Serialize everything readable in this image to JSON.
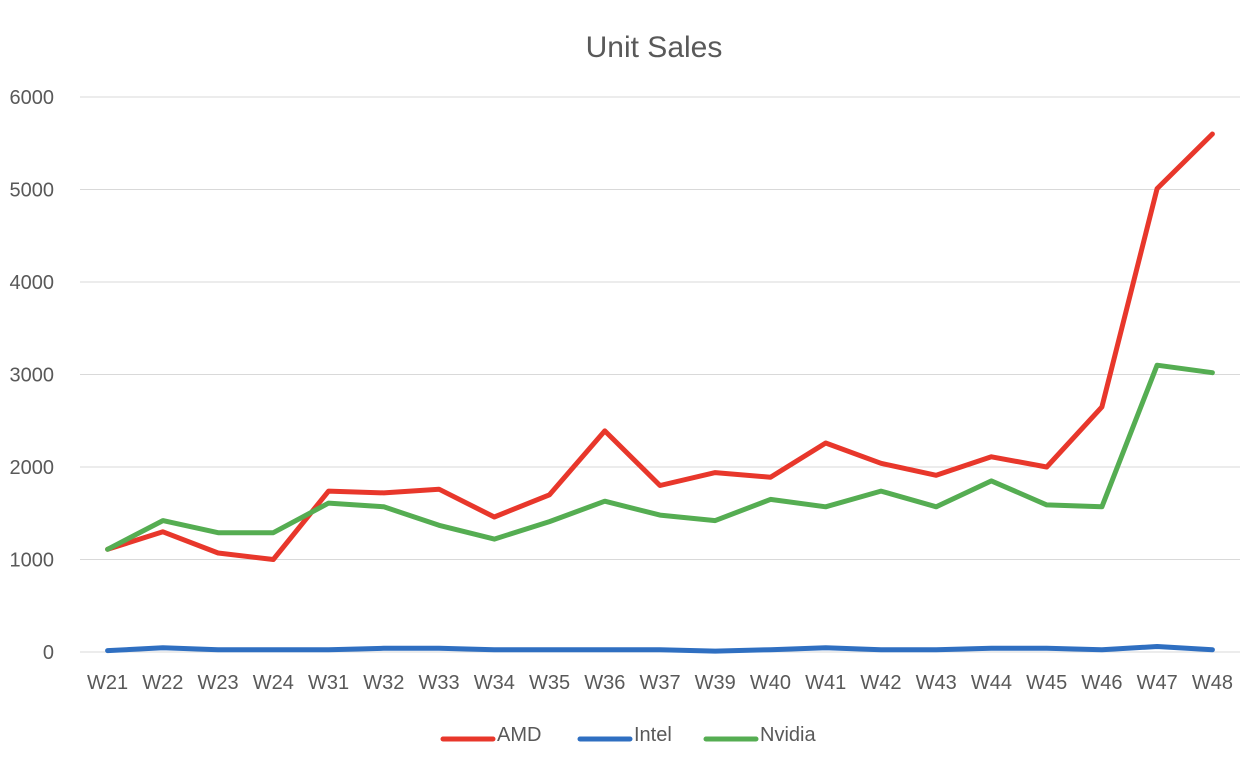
{
  "chart_data": {
    "type": "line",
    "title": "Unit Sales",
    "xlabel": "",
    "ylabel": "",
    "categories": [
      "W21",
      "W22",
      "W23",
      "W24",
      "W31",
      "W32",
      "W33",
      "W34",
      "W35",
      "W36",
      "W37",
      "W39",
      "W40",
      "W41",
      "W42",
      "W43",
      "W44",
      "W45",
      "W46",
      "W47",
      "W48"
    ],
    "ylim": [
      0,
      6000
    ],
    "yticks": [
      0,
      1000,
      2000,
      3000,
      4000,
      5000,
      6000
    ],
    "grid": true,
    "legend_position": "bottom",
    "series": [
      {
        "name": "AMD",
        "color": "#e8372b",
        "values": [
          1110,
          1300,
          1070,
          1000,
          1740,
          1720,
          1760,
          1460,
          1700,
          2390,
          1800,
          1940,
          1890,
          2260,
          2040,
          1910,
          2110,
          2000,
          2650,
          5010,
          5600
        ]
      },
      {
        "name": "Intel",
        "color": "#2f6fc1",
        "values": [
          15,
          45,
          25,
          25,
          25,
          40,
          40,
          25,
          25,
          25,
          25,
          10,
          25,
          45,
          25,
          25,
          40,
          40,
          25,
          60,
          25
        ]
      },
      {
        "name": "Nvidia",
        "color": "#55ad52",
        "values": [
          1110,
          1420,
          1290,
          1290,
          1610,
          1570,
          1370,
          1220,
          1410,
          1630,
          1480,
          1420,
          1650,
          1570,
          1740,
          1570,
          1850,
          1590,
          1570,
          3100,
          3020
        ]
      }
    ]
  }
}
